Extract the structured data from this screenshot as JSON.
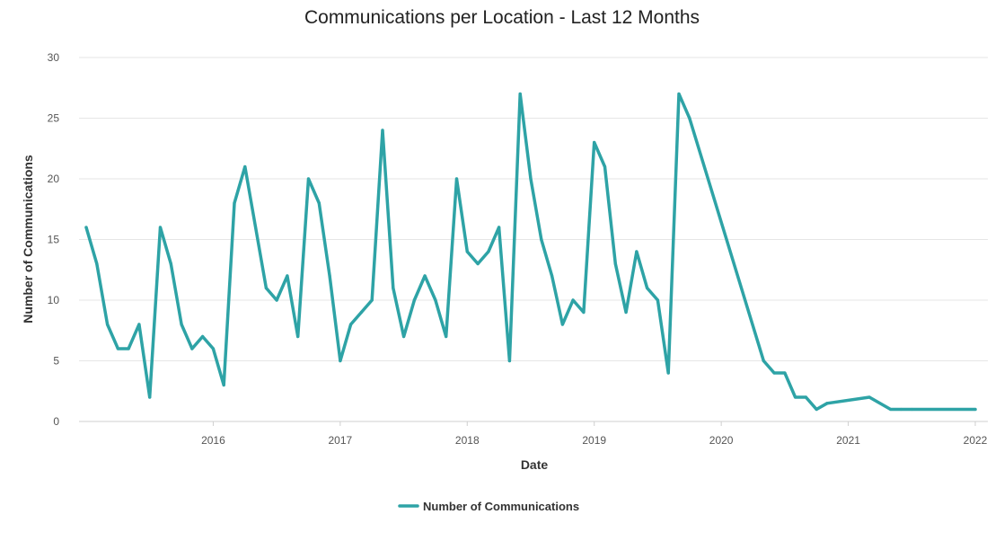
{
  "chart_data": {
    "type": "line",
    "title": "Communications per Location - Last 12 Months",
    "xlabel": "Date",
    "ylabel": "Number of Communications",
    "ylim": [
      0,
      30
    ],
    "yticks": [
      0,
      5,
      10,
      15,
      20,
      25,
      30
    ],
    "xticks": [
      "2016",
      "2017",
      "2018",
      "2019",
      "2020",
      "2021",
      "2022"
    ],
    "xlim": [
      "2015-01",
      "2022-01"
    ],
    "grid": true,
    "legend_position": "bottom",
    "color": "#2ea3a6",
    "series": [
      {
        "name": "Number of Communications",
        "x": [
          "2015-01",
          "2015-02",
          "2015-03",
          "2015-04",
          "2015-05",
          "2015-06",
          "2015-07",
          "2015-08",
          "2015-09",
          "2015-10",
          "2015-11",
          "2015-12",
          "2016-01",
          "2016-02",
          "2016-03",
          "2016-04",
          "2016-05",
          "2016-06",
          "2016-07",
          "2016-08",
          "2016-09",
          "2016-10",
          "2016-11",
          "2016-12",
          "2017-01",
          "2017-02",
          "2017-03",
          "2017-04",
          "2017-05",
          "2017-06",
          "2017-07",
          "2017-08",
          "2017-09",
          "2017-10",
          "2017-11",
          "2017-12",
          "2018-01",
          "2018-02",
          "2018-03",
          "2018-04",
          "2018-05",
          "2018-06",
          "2018-07",
          "2018-08",
          "2018-09",
          "2018-10",
          "2018-11",
          "2018-12",
          "2019-01",
          "2019-02",
          "2019-03",
          "2019-04",
          "2019-05",
          "2019-06",
          "2019-07",
          "2019-08",
          "2019-09",
          "2019-10",
          "2020-05",
          "2020-06",
          "2020-07",
          "2020-08",
          "2020-09",
          "2020-10",
          "2020-11",
          "2021-03",
          "2021-05",
          "2021-06",
          "2021-07",
          "2022-01"
        ],
        "values": [
          16,
          13,
          8,
          6,
          6,
          8,
          2,
          16,
          13,
          8,
          6,
          7,
          6,
          3,
          18,
          21,
          16,
          11,
          10,
          12,
          7,
          20,
          18,
          12,
          5,
          8,
          9,
          10,
          24,
          11,
          7,
          10,
          12,
          10,
          7,
          20,
          14,
          13,
          14,
          16,
          5,
          27,
          20,
          15,
          12,
          8,
          10,
          9,
          23,
          21,
          13,
          9,
          14,
          11,
          10,
          4,
          27,
          25,
          5,
          4,
          4,
          2,
          2,
          1,
          1.5,
          2,
          1,
          1,
          1,
          1
        ]
      }
    ]
  }
}
